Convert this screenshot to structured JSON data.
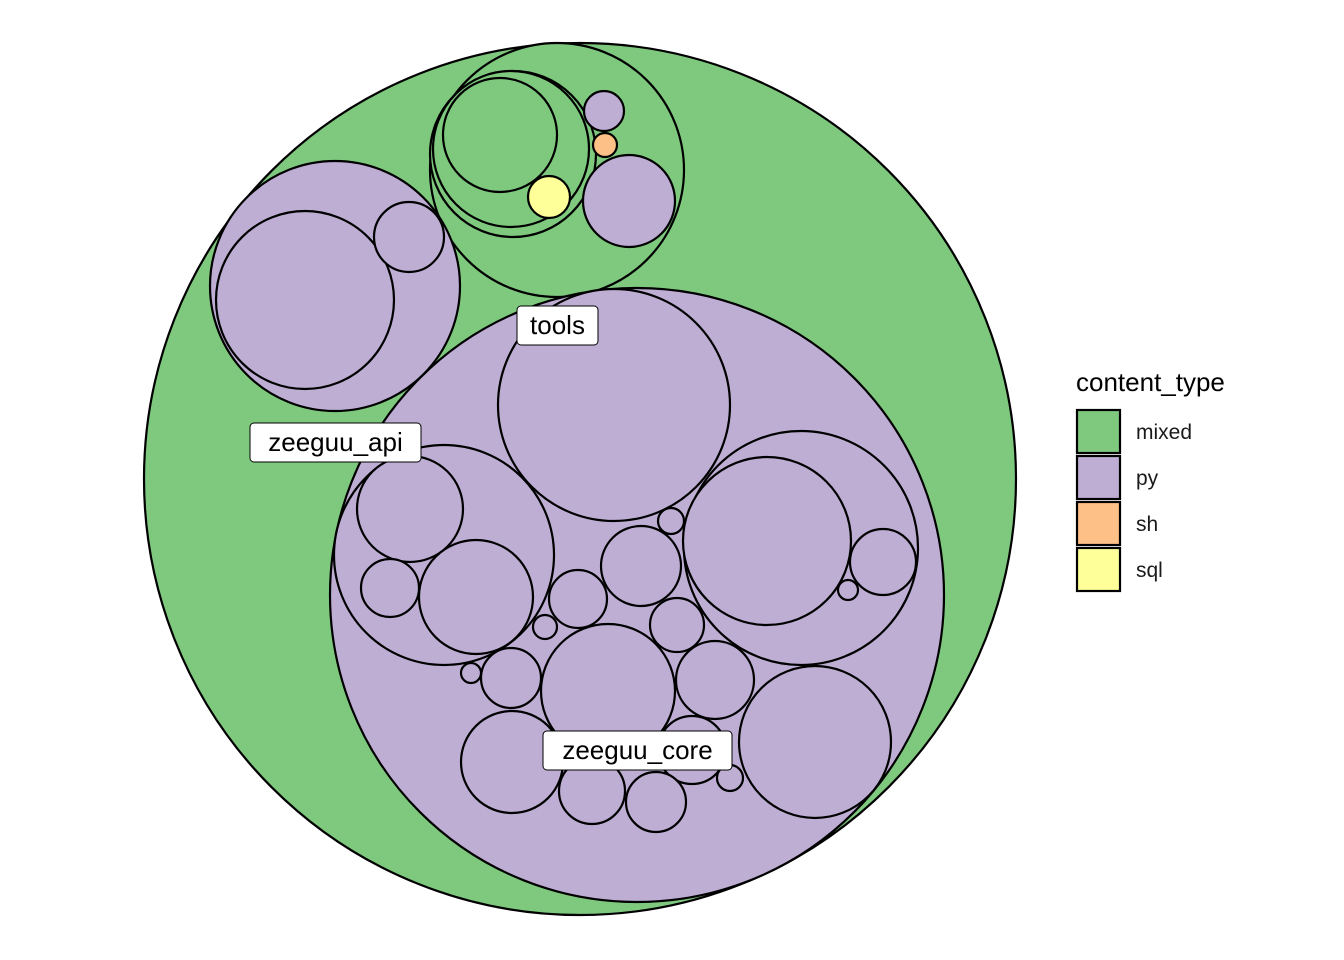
{
  "chart_data": {
    "type": "circle-packing",
    "legend": {
      "title": "content_type",
      "placement": "right",
      "items": [
        {
          "key": "mixed",
          "label": "mixed",
          "color": "#7fc97f"
        },
        {
          "key": "py",
          "label": "py",
          "color": "#beaed4"
        },
        {
          "key": "sh",
          "label": "sh",
          "color": "#fdc086"
        },
        {
          "key": "sql",
          "label": "sql",
          "color": "#ffff99"
        }
      ]
    },
    "labels": {
      "tools": "tools",
      "zeeguu_api": "zeeguu_api",
      "zeeguu_core": "zeeguu_core"
    }
  }
}
